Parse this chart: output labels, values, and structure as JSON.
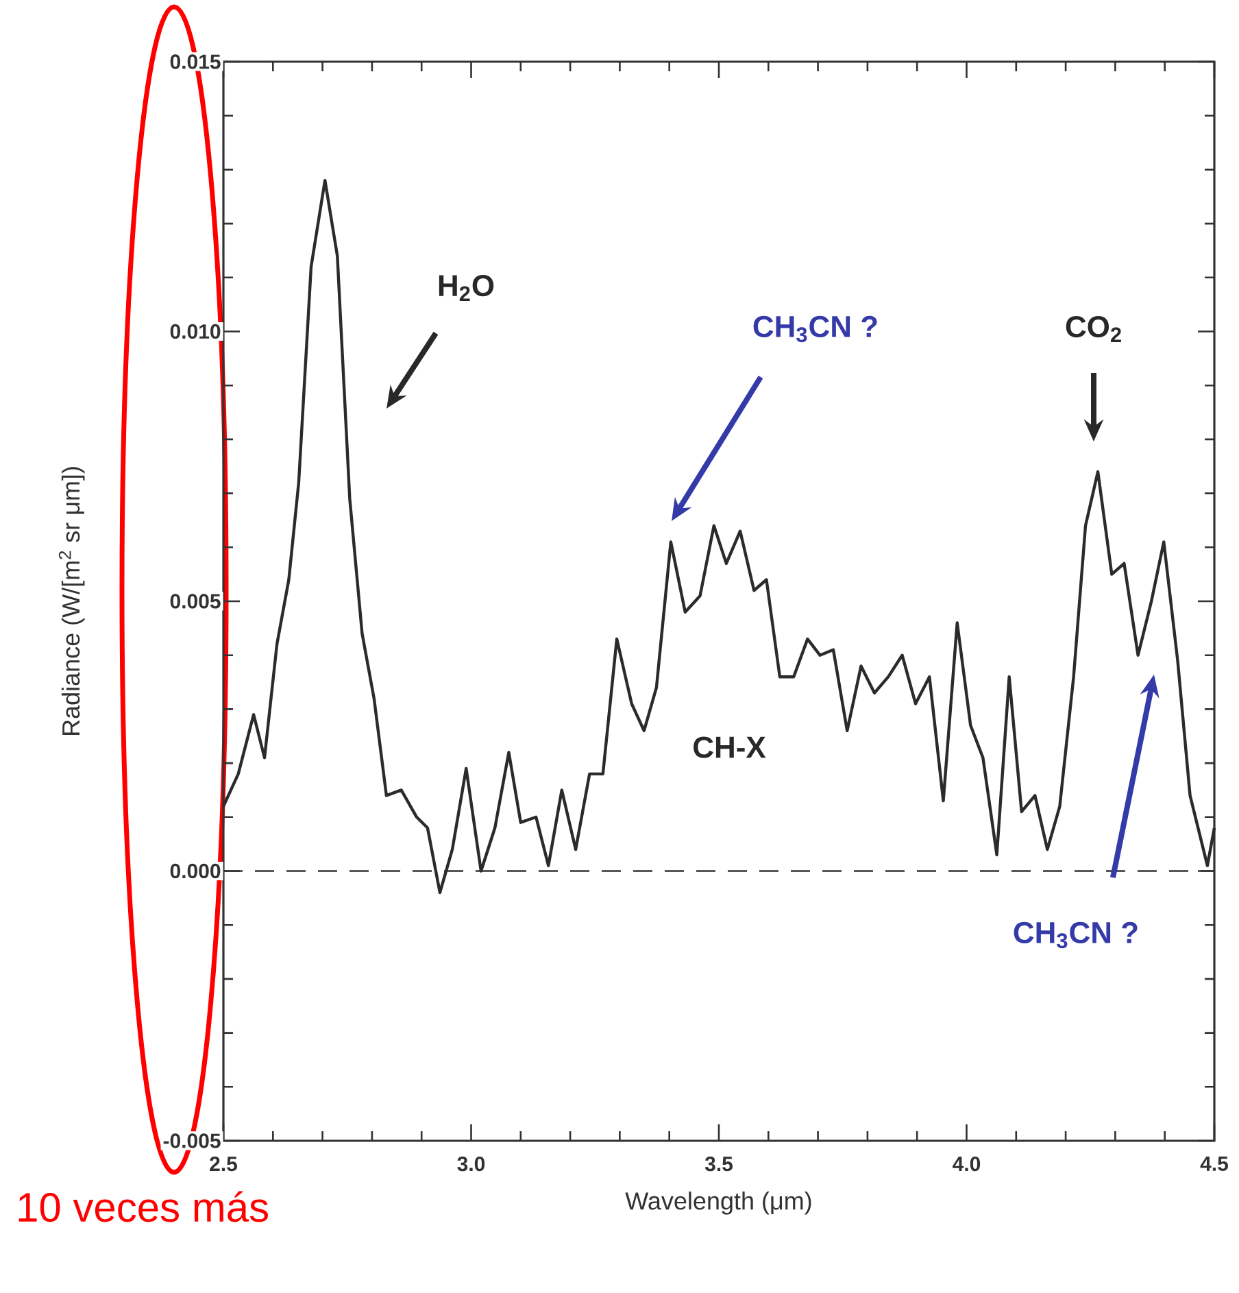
{
  "chart_data": {
    "type": "line",
    "xlabel": "Wavelength (μm)",
    "ylabel": "Radiance (W/[m$^{2}$ sr μm])",
    "xlim": [
      2.5,
      4.5
    ],
    "ylim": [
      -0.005,
      0.015
    ],
    "xticks": [
      {
        "value": 2.5,
        "label": "2.5"
      },
      {
        "value": 3.0,
        "label": "3.0"
      },
      {
        "value": 3.5,
        "label": "3.5"
      },
      {
        "value": 4.0,
        "label": "4.0"
      },
      {
        "value": 4.5,
        "label": "4.5"
      }
    ],
    "yticks": [
      {
        "value": -0.005,
        "label": "-0.005"
      },
      {
        "value": 0.0,
        "label": "0.000"
      },
      {
        "value": 0.005,
        "label": "0.005"
      },
      {
        "value": 0.01,
        "label": "0.010"
      },
      {
        "value": 0.015,
        "label": "0.015"
      }
    ],
    "series": [
      {
        "color": "#2b2b2b",
        "x": [
          2.5,
          2.53,
          2.561,
          2.583,
          2.608,
          2.632,
          2.652,
          2.677,
          2.705,
          2.73,
          2.755,
          2.78,
          2.804,
          2.829,
          2.859,
          2.89,
          2.912,
          2.937,
          2.962,
          2.99,
          3.02,
          3.048,
          3.076,
          3.1,
          3.131,
          3.156,
          3.183,
          3.211,
          3.239,
          3.266,
          3.294,
          3.324,
          3.349,
          3.374,
          3.403,
          3.432,
          3.462,
          3.49,
          3.515,
          3.543,
          3.571,
          3.596,
          3.623,
          3.651,
          3.679,
          3.704,
          3.731,
          3.759,
          3.787,
          3.814,
          3.842,
          3.87,
          3.897,
          3.925,
          3.953,
          3.981,
          4.008,
          4.033,
          4.061,
          4.086,
          4.111,
          4.138,
          4.163,
          4.188,
          4.216,
          4.24,
          4.265,
          4.293,
          4.318,
          4.346,
          4.373,
          4.398,
          4.426,
          4.451,
          4.486,
          4.5
        ],
        "values": [
          0.0012,
          0.0018,
          0.0029,
          0.0021,
          0.0042,
          0.0054,
          0.0072,
          0.0112,
          0.0128,
          0.0114,
          0.0069,
          0.0044,
          0.0032,
          0.0014,
          0.0015,
          0.001,
          0.0008,
          -0.0004,
          0.0004,
          0.0019,
          0.0,
          0.0008,
          0.0022,
          0.0009,
          0.001,
          0.0001,
          0.0015,
          0.0004,
          0.0018,
          0.0018,
          0.0043,
          0.0031,
          0.0026,
          0.0034,
          0.0061,
          0.0048,
          0.0051,
          0.0064,
          0.0057,
          0.0063,
          0.0052,
          0.0054,
          0.0036,
          0.0036,
          0.0043,
          0.004,
          0.0041,
          0.0026,
          0.0038,
          0.0033,
          0.0036,
          0.004,
          0.0031,
          0.0036,
          0.0013,
          0.0046,
          0.0027,
          0.0021,
          0.0003,
          0.0036,
          0.0011,
          0.0014,
          0.0004,
          0.0012,
          0.0036,
          0.0064,
          0.0074,
          0.0055,
          0.0057,
          0.004,
          0.005,
          0.0061,
          0.0039,
          0.0014,
          0.0001,
          0.0008
        ]
      }
    ],
    "ref_lines": [
      {
        "axis": "y",
        "value": 0,
        "line_style": "dashed"
      }
    ],
    "annotations": [
      "H$_{2}$O",
      "CH$_{3}$CN ?",
      "CO$_{2}$",
      "CH$_{3}$CN ?",
      "CH-X",
      "10 veces más"
    ]
  }
}
